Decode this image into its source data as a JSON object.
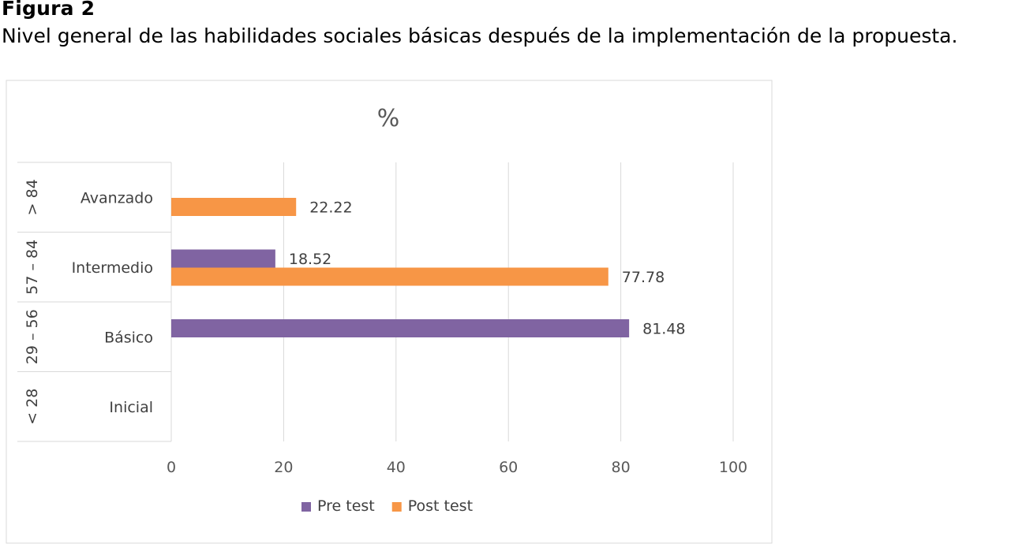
{
  "figure": {
    "label": "Figura 2",
    "caption": "Nivel general de las habilidades sociales básicas después de la implementación de la propuesta."
  },
  "chart_data": {
    "type": "bar",
    "orientation": "horizontal",
    "title": "%",
    "categories": [
      "Avanzado",
      "Intermedio",
      "Básico",
      "Inicial"
    ],
    "category_ranges": [
      "> 84",
      "57 – 84",
      "29 – 56",
      "< 28"
    ],
    "series": [
      {
        "name": "Pre test",
        "color": "#8064A2",
        "values": [
          null,
          18.52,
          81.48,
          null
        ]
      },
      {
        "name": "Post test",
        "color": "#F79646",
        "values": [
          22.22,
          77.78,
          null,
          null
        ]
      }
    ],
    "data_labels": [
      [
        "",
        "18.52",
        "81.48",
        ""
      ],
      [
        "22.22",
        "77.78",
        "",
        ""
      ]
    ],
    "x_ticks": [
      "0",
      "20",
      "40",
      "60",
      "80",
      "100"
    ],
    "xlim": [
      0,
      100
    ],
    "grid": true,
    "legend_position": "bottom"
  }
}
